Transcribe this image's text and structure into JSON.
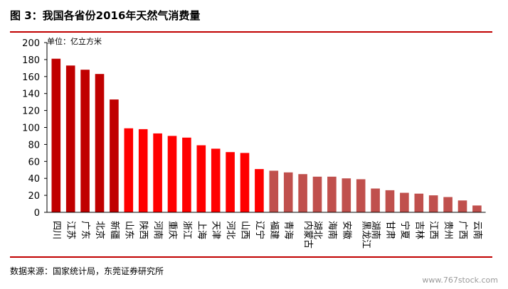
{
  "title": "图 3：我国各省份2016年天然气消费量",
  "source": "数据来源：国家统计局，东莞证券研究所",
  "watermark": "www.767stock.com",
  "chart_data": {
    "type": "bar",
    "unit_label": "单位：亿立方米",
    "ylim": [
      0,
      200
    ],
    "yticks": [
      0,
      20,
      40,
      60,
      80,
      100,
      120,
      140,
      160,
      180,
      200
    ],
    "grid": false,
    "legend": "none",
    "colors": {
      "dark": "#c00000",
      "bright": "#ff0000",
      "muted": "#c0504d"
    },
    "categories": [
      "四川",
      "江苏",
      "广东",
      "北京",
      "新疆",
      "山东",
      "陕西",
      "河南",
      "重庆",
      "浙江",
      "上海",
      "天津",
      "河北",
      "山西",
      "辽宁",
      "福建",
      "青海",
      "内蒙古",
      "湖北",
      "海南",
      "安徽",
      "黑龙江",
      "湖南",
      "甘肃",
      "宁夏",
      "吉林",
      "江西",
      "贵州",
      "广西",
      "云南"
    ],
    "values": [
      181,
      173,
      168,
      163,
      133,
      99,
      98,
      93,
      90,
      88,
      79,
      75,
      71,
      70,
      51,
      49,
      47,
      45,
      42,
      42,
      40,
      39,
      28,
      26,
      23,
      22,
      20,
      18,
      14,
      8
    ],
    "bar_color_group": [
      "dark",
      "dark",
      "dark",
      "dark",
      "dark",
      "bright",
      "bright",
      "bright",
      "bright",
      "bright",
      "bright",
      "bright",
      "bright",
      "bright",
      "bright",
      "muted",
      "muted",
      "muted",
      "muted",
      "muted",
      "muted",
      "muted",
      "muted",
      "muted",
      "muted",
      "muted",
      "muted",
      "muted",
      "muted",
      "muted"
    ]
  }
}
